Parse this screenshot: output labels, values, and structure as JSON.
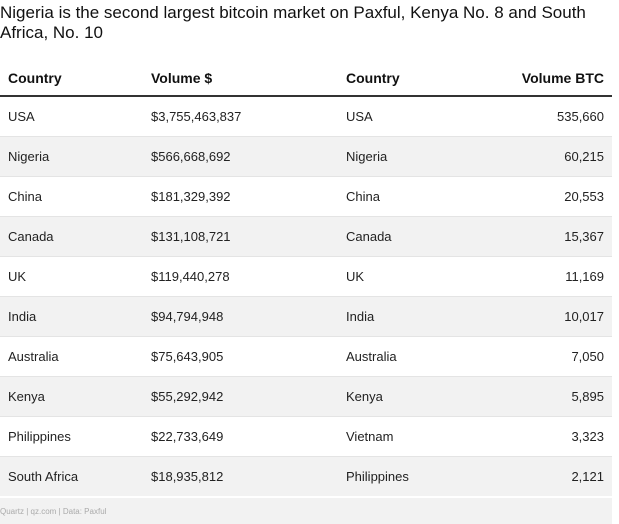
{
  "title": "Nigeria is the second largest bitcoin market on Paxful, Kenya No. 8 and South Africa, No. 10",
  "table": {
    "headers": [
      "Country",
      "Volume $",
      "Country",
      "Volume BTC"
    ],
    "rows": [
      [
        "USA",
        "$3,755,463,837",
        "USA",
        "535,660"
      ],
      [
        "Nigeria",
        "$566,668,692",
        "Nigeria",
        "60,215"
      ],
      [
        "China",
        "$181,329,392",
        "China",
        "20,553"
      ],
      [
        "Canada",
        "$131,108,721",
        "Canada",
        "15,367"
      ],
      [
        "UK",
        "$119,440,278",
        "UK",
        "11,169"
      ],
      [
        "India",
        "$94,794,948",
        "India",
        "10,017"
      ],
      [
        "Australia",
        "$75,643,905",
        "Australia",
        "7,050"
      ],
      [
        "Kenya",
        "$55,292,942",
        "Kenya",
        "5,895"
      ],
      [
        "Philippines",
        "$22,733,649",
        "Vietnam",
        "3,323"
      ],
      [
        "South Africa",
        "$18,935,812",
        "Philippines",
        "2,121"
      ]
    ]
  },
  "source": "Quartz | qz.com | Data: Paxful",
  "colors": {
    "stripe": "#f2f2f2",
    "header_rule": "#333333",
    "text": "#111111",
    "source_text": "#aaaaaa"
  }
}
